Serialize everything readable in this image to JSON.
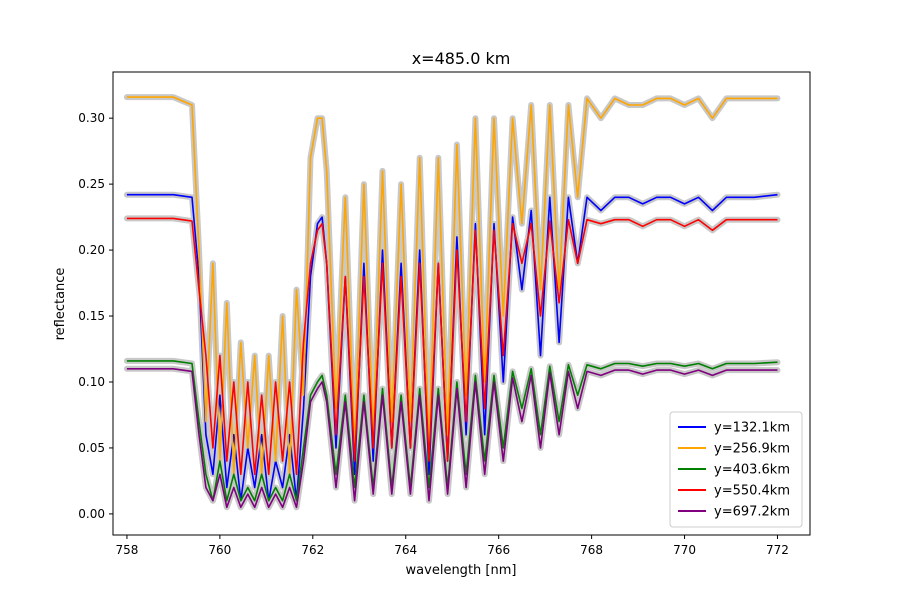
{
  "chart_data": {
    "type": "line",
    "title": "x=485.0 km",
    "xlabel": "wavelength [nm]",
    "ylabel": "reflectance",
    "xlim": [
      757.7,
      772.7
    ],
    "ylim": [
      -0.016,
      0.335
    ],
    "xticks": [
      758,
      760,
      762,
      764,
      766,
      768,
      770,
      772
    ],
    "xtick_labels": [
      "758",
      "760",
      "762",
      "764",
      "766",
      "768",
      "770",
      "772"
    ],
    "yticks": [
      0.0,
      0.05,
      0.1,
      0.15,
      0.2,
      0.25,
      0.3
    ],
    "ytick_labels": [
      "0.00",
      "0.05",
      "0.10",
      "0.15",
      "0.20",
      "0.25",
      "0.30"
    ],
    "grid": false,
    "legend_position": "lower right",
    "uncertainty_band": true,
    "series": [
      {
        "name": "y=132.1km",
        "color": "#0000ff",
        "x": [
          758.0,
          759.0,
          759.4,
          759.55,
          759.7,
          759.85,
          760.0,
          760.15,
          760.3,
          760.45,
          760.6,
          760.75,
          760.9,
          761.05,
          761.2,
          761.35,
          761.5,
          761.65,
          761.8,
          761.95,
          762.1,
          762.2,
          762.3,
          762.5,
          762.7,
          762.9,
          763.1,
          763.3,
          763.5,
          763.7,
          763.9,
          764.1,
          764.3,
          764.5,
          764.7,
          764.9,
          765.1,
          765.3,
          765.5,
          765.7,
          765.9,
          766.1,
          766.3,
          766.5,
          766.7,
          766.9,
          767.1,
          767.3,
          767.5,
          767.7,
          767.9,
          768.2,
          768.5,
          768.8,
          769.1,
          769.4,
          769.7,
          770.0,
          770.3,
          770.6,
          770.9,
          771.2,
          771.5,
          772.0
        ],
        "y": [
          0.242,
          0.242,
          0.24,
          0.18,
          0.06,
          0.03,
          0.09,
          0.02,
          0.06,
          0.01,
          0.05,
          0.02,
          0.06,
          0.01,
          0.04,
          0.02,
          0.06,
          0.01,
          0.08,
          0.18,
          0.22,
          0.225,
          0.19,
          0.05,
          0.18,
          0.03,
          0.19,
          0.04,
          0.2,
          0.05,
          0.19,
          0.05,
          0.2,
          0.03,
          0.19,
          0.04,
          0.21,
          0.06,
          0.22,
          0.06,
          0.22,
          0.1,
          0.225,
          0.17,
          0.23,
          0.12,
          0.24,
          0.13,
          0.24,
          0.19,
          0.24,
          0.23,
          0.24,
          0.24,
          0.235,
          0.24,
          0.24,
          0.235,
          0.24,
          0.23,
          0.24,
          0.24,
          0.24,
          0.242
        ]
      },
      {
        "name": "y=256.9km",
        "color": "#ffa500",
        "x": [
          758.0,
          759.0,
          759.4,
          759.55,
          759.7,
          759.85,
          760.0,
          760.15,
          760.3,
          760.45,
          760.6,
          760.75,
          760.9,
          761.05,
          761.2,
          761.35,
          761.5,
          761.65,
          761.8,
          761.95,
          762.1,
          762.2,
          762.3,
          762.5,
          762.7,
          762.9,
          763.1,
          763.3,
          763.5,
          763.7,
          763.9,
          764.1,
          764.3,
          764.5,
          764.7,
          764.9,
          765.1,
          765.3,
          765.5,
          765.7,
          765.9,
          766.1,
          766.3,
          766.5,
          766.7,
          766.9,
          767.1,
          767.3,
          767.5,
          767.7,
          767.9,
          768.2,
          768.5,
          768.8,
          769.1,
          769.4,
          769.7,
          770.0,
          770.3,
          770.6,
          770.9,
          771.2,
          771.5,
          772.0
        ],
        "y": [
          0.316,
          0.316,
          0.31,
          0.2,
          0.07,
          0.19,
          0.04,
          0.16,
          0.03,
          0.13,
          0.05,
          0.12,
          0.03,
          0.12,
          0.04,
          0.15,
          0.03,
          0.17,
          0.09,
          0.27,
          0.3,
          0.3,
          0.26,
          0.08,
          0.24,
          0.05,
          0.25,
          0.06,
          0.26,
          0.07,
          0.25,
          0.07,
          0.27,
          0.05,
          0.27,
          0.06,
          0.28,
          0.09,
          0.3,
          0.1,
          0.3,
          0.15,
          0.3,
          0.22,
          0.31,
          0.17,
          0.31,
          0.17,
          0.31,
          0.24,
          0.315,
          0.3,
          0.315,
          0.31,
          0.31,
          0.315,
          0.315,
          0.31,
          0.315,
          0.3,
          0.315,
          0.315,
          0.315,
          0.315
        ]
      },
      {
        "name": "y=403.6km",
        "color": "#008000",
        "x": [
          758.0,
          759.0,
          759.4,
          759.55,
          759.7,
          759.85,
          760.0,
          760.15,
          760.3,
          760.45,
          760.6,
          760.75,
          760.9,
          761.05,
          761.2,
          761.35,
          761.5,
          761.65,
          761.8,
          761.95,
          762.1,
          762.2,
          762.3,
          762.5,
          762.7,
          762.9,
          763.1,
          763.3,
          763.5,
          763.7,
          763.9,
          764.1,
          764.3,
          764.5,
          764.7,
          764.9,
          765.1,
          765.3,
          765.5,
          765.7,
          765.9,
          766.1,
          766.3,
          766.5,
          766.7,
          766.9,
          767.1,
          767.3,
          767.5,
          767.7,
          767.9,
          768.2,
          768.5,
          768.8,
          769.1,
          769.4,
          769.7,
          770.0,
          770.3,
          770.6,
          770.9,
          771.2,
          771.5,
          772.0
        ],
        "y": [
          0.116,
          0.116,
          0.114,
          0.07,
          0.03,
          0.01,
          0.04,
          0.01,
          0.03,
          0.01,
          0.02,
          0.01,
          0.03,
          0.01,
          0.02,
          0.01,
          0.03,
          0.01,
          0.05,
          0.09,
          0.1,
          0.105,
          0.09,
          0.03,
          0.09,
          0.02,
          0.09,
          0.02,
          0.095,
          0.02,
          0.09,
          0.02,
          0.095,
          0.02,
          0.095,
          0.02,
          0.1,
          0.03,
          0.105,
          0.04,
          0.105,
          0.05,
          0.108,
          0.08,
          0.11,
          0.06,
          0.112,
          0.07,
          0.113,
          0.09,
          0.113,
          0.11,
          0.114,
          0.114,
          0.112,
          0.114,
          0.114,
          0.112,
          0.114,
          0.11,
          0.114,
          0.114,
          0.114,
          0.115
        ]
      },
      {
        "name": "y=550.4km",
        "color": "#ff0000",
        "x": [
          758.0,
          759.0,
          759.4,
          759.55,
          759.7,
          759.85,
          760.0,
          760.15,
          760.3,
          760.45,
          760.6,
          760.75,
          760.9,
          761.05,
          761.2,
          761.35,
          761.5,
          761.65,
          761.8,
          761.95,
          762.1,
          762.2,
          762.3,
          762.5,
          762.7,
          762.9,
          763.1,
          763.3,
          763.5,
          763.7,
          763.9,
          764.1,
          764.3,
          764.5,
          764.7,
          764.9,
          765.1,
          765.3,
          765.5,
          765.7,
          765.9,
          766.1,
          766.3,
          766.5,
          766.7,
          766.9,
          767.1,
          767.3,
          767.5,
          767.7,
          767.9,
          768.2,
          768.5,
          768.8,
          769.1,
          769.4,
          769.7,
          770.0,
          770.3,
          770.6,
          770.9,
          771.2,
          771.5,
          772.0
        ],
        "y": [
          0.224,
          0.224,
          0.222,
          0.17,
          0.12,
          0.05,
          0.12,
          0.04,
          0.1,
          0.03,
          0.1,
          0.03,
          0.09,
          0.03,
          0.1,
          0.04,
          0.1,
          0.03,
          0.13,
          0.19,
          0.215,
          0.22,
          0.19,
          0.06,
          0.18,
          0.04,
          0.18,
          0.05,
          0.19,
          0.05,
          0.18,
          0.05,
          0.19,
          0.04,
          0.19,
          0.04,
          0.2,
          0.07,
          0.215,
          0.08,
          0.215,
          0.12,
          0.22,
          0.19,
          0.22,
          0.15,
          0.222,
          0.16,
          0.223,
          0.19,
          0.223,
          0.22,
          0.223,
          0.223,
          0.218,
          0.223,
          0.223,
          0.218,
          0.223,
          0.215,
          0.223,
          0.223,
          0.223,
          0.223
        ]
      },
      {
        "name": "y=697.2km",
        "color": "#800080",
        "x": [
          758.0,
          759.0,
          759.4,
          759.55,
          759.7,
          759.85,
          760.0,
          760.15,
          760.3,
          760.45,
          760.6,
          760.75,
          760.9,
          761.05,
          761.2,
          761.35,
          761.5,
          761.65,
          761.8,
          761.95,
          762.1,
          762.2,
          762.3,
          762.5,
          762.7,
          762.9,
          763.1,
          763.3,
          763.5,
          763.7,
          763.9,
          764.1,
          764.3,
          764.5,
          764.7,
          764.9,
          765.1,
          765.3,
          765.5,
          765.7,
          765.9,
          766.1,
          766.3,
          766.5,
          766.7,
          766.9,
          767.1,
          767.3,
          767.5,
          767.7,
          767.9,
          768.2,
          768.5,
          768.8,
          769.1,
          769.4,
          769.7,
          770.0,
          770.3,
          770.6,
          770.9,
          771.2,
          771.5,
          772.0
        ],
        "y": [
          0.11,
          0.11,
          0.108,
          0.06,
          0.02,
          0.01,
          0.03,
          0.005,
          0.02,
          0.005,
          0.015,
          0.005,
          0.02,
          0.005,
          0.015,
          0.005,
          0.02,
          0.005,
          0.04,
          0.085,
          0.095,
          0.1,
          0.085,
          0.02,
          0.085,
          0.01,
          0.085,
          0.015,
          0.09,
          0.015,
          0.085,
          0.015,
          0.09,
          0.01,
          0.09,
          0.015,
          0.095,
          0.02,
          0.1,
          0.03,
          0.1,
          0.04,
          0.103,
          0.07,
          0.105,
          0.05,
          0.107,
          0.06,
          0.108,
          0.08,
          0.108,
          0.105,
          0.109,
          0.109,
          0.106,
          0.109,
          0.109,
          0.106,
          0.109,
          0.105,
          0.109,
          0.109,
          0.109,
          0.109
        ]
      }
    ]
  }
}
